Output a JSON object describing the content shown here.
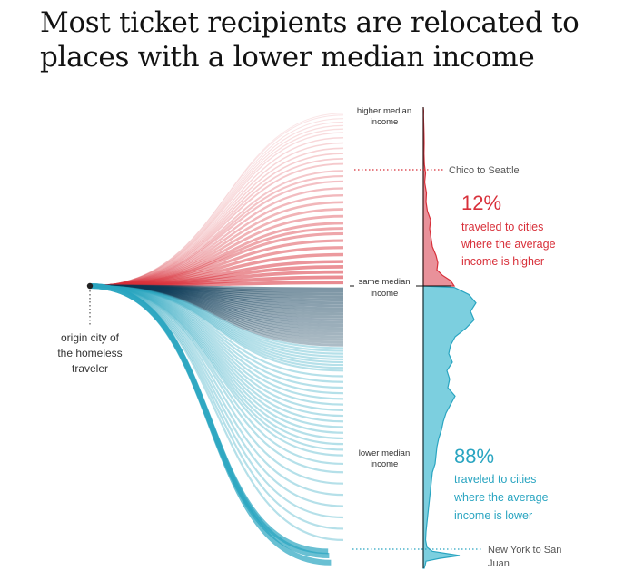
{
  "title": "Most ticket recipients are relocated to places with a lower median income",
  "colors": {
    "higher": "#d8303a",
    "lower": "#2aa5c1",
    "lower_dark": "#0d3b57",
    "higher_fill": "#e9919a",
    "lower_fill": "#7ccfdf"
  },
  "chart_data": {
    "type": "area",
    "title": "Most ticket recipients are relocated to places with a lower median income",
    "description_labels": {
      "origin": [
        "origin city of",
        "the homeless",
        "traveler"
      ],
      "axis_top": [
        "higher median",
        "income"
      ],
      "axis_mid": [
        "same median",
        "income"
      ],
      "axis_bottom": [
        "lower median",
        "income"
      ]
    },
    "annotations": {
      "top_example": "Chico to Seattle",
      "bottom_example": [
        "New York to San",
        "Juan"
      ]
    },
    "series": [
      {
        "name": "higher",
        "share": "12%",
        "text": [
          "traveled to cities",
          "where the average",
          "income is higher"
        ]
      },
      {
        "name": "lower",
        "share": "88%",
        "text": [
          "traveled to cities",
          "where the average",
          "income is lower"
        ]
      }
    ],
    "density_higher": [
      [
        0.0,
        0.0
      ],
      [
        0.02,
        0.4
      ],
      [
        0.05,
        0.3
      ],
      [
        0.09,
        0.5
      ],
      [
        0.14,
        0.8
      ],
      [
        0.2,
        1.0
      ],
      [
        0.26,
        0.8
      ],
      [
        0.32,
        1.2
      ],
      [
        0.37,
        2.5
      ],
      [
        0.42,
        1.5
      ],
      [
        0.48,
        3.5
      ],
      [
        0.53,
        3.0
      ],
      [
        0.58,
        4.5
      ],
      [
        0.63,
        8.0
      ],
      [
        0.68,
        7.0
      ],
      [
        0.73,
        8.5
      ],
      [
        0.78,
        10.0
      ],
      [
        0.83,
        14.0
      ],
      [
        0.87,
        16.0
      ],
      [
        0.91,
        15.0
      ],
      [
        0.94,
        21.0
      ],
      [
        0.97,
        30.0
      ],
      [
        1.0,
        34.0
      ]
    ],
    "density_lower": [
      [
        0.0,
        0.0
      ],
      [
        0.005,
        34.0
      ],
      [
        0.03,
        50.0
      ],
      [
        0.06,
        58.0
      ],
      [
        0.09,
        52.0
      ],
      [
        0.12,
        56.0
      ],
      [
        0.15,
        47.0
      ],
      [
        0.18,
        35.0
      ],
      [
        0.21,
        30.0
      ],
      [
        0.24,
        28.0
      ],
      [
        0.27,
        32.0
      ],
      [
        0.3,
        26.0
      ],
      [
        0.33,
        29.0
      ],
      [
        0.36,
        27.0
      ],
      [
        0.39,
        35.0
      ],
      [
        0.42,
        30.0
      ],
      [
        0.45,
        25.0
      ],
      [
        0.48,
        22.0
      ],
      [
        0.51,
        20.0
      ],
      [
        0.54,
        17.0
      ],
      [
        0.57,
        15.0
      ],
      [
        0.6,
        14.0
      ],
      [
        0.63,
        13.0
      ],
      [
        0.66,
        10.0
      ],
      [
        0.69,
        9.0
      ],
      [
        0.72,
        8.0
      ],
      [
        0.75,
        7.0
      ],
      [
        0.78,
        6.0
      ],
      [
        0.81,
        5.0
      ],
      [
        0.84,
        4.0
      ],
      [
        0.87,
        3.0
      ],
      [
        0.9,
        2.5
      ],
      [
        0.925,
        4.0
      ],
      [
        0.94,
        10.0
      ],
      [
        0.955,
        40.0
      ],
      [
        0.965,
        18.0
      ],
      [
        0.975,
        3.0
      ],
      [
        0.99,
        2.0
      ],
      [
        1.0,
        1.0
      ]
    ],
    "flows_higher": [
      0.02,
      0.05,
      0.08,
      0.11,
      0.14,
      0.18,
      0.22,
      0.26,
      0.3,
      0.33,
      0.36,
      0.4,
      0.44,
      0.48,
      0.52,
      0.56,
      0.6,
      0.63,
      0.66,
      0.7,
      0.73,
      0.76,
      0.79,
      0.82,
      0.85,
      0.88,
      0.9,
      0.92,
      0.94,
      0.96,
      0.98,
      0.99
    ],
    "flows_lower": [
      0.01,
      0.02,
      0.03,
      0.04,
      0.05,
      0.06,
      0.07,
      0.08,
      0.09,
      0.1,
      0.11,
      0.12,
      0.13,
      0.14,
      0.15,
      0.16,
      0.17,
      0.18,
      0.19,
      0.2,
      0.21,
      0.22,
      0.23,
      0.24,
      0.25,
      0.26,
      0.27,
      0.28,
      0.29,
      0.3,
      0.32,
      0.34,
      0.36,
      0.38,
      0.4,
      0.42,
      0.44,
      0.46,
      0.48,
      0.5,
      0.52,
      0.54,
      0.56,
      0.58,
      0.6,
      0.63,
      0.66,
      0.7,
      0.74,
      0.78,
      0.82,
      0.86,
      0.9,
      0.94,
      0.955,
      0.98
    ]
  }
}
